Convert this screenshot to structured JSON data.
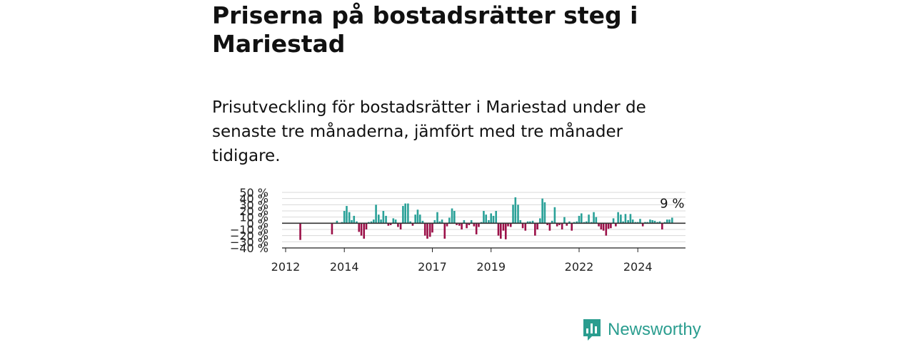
{
  "title": "Priserna på bostadsrätter steg i Mariestad",
  "subtitle": "Prisutveckling för bostadsrätter i Mariestad under de senaste tre månaderna, jämfört med tre månader tidigare.",
  "brand": {
    "name": "Newsworthy"
  },
  "colors": {
    "positive": "#2aa198",
    "negative": "#9b1048",
    "brand": "#2a9d8f",
    "grid": "#d9d9d9",
    "zero": "#333333"
  },
  "chart_data": {
    "type": "bar",
    "ylim": [
      -40,
      50
    ],
    "yticks": [
      -40,
      -30,
      -20,
      -10,
      0,
      10,
      20,
      30,
      40,
      50
    ],
    "ytick_labels": [
      "−40 %",
      "−30 %",
      "−20 %",
      "−10 %",
      "0 %",
      "10 %",
      "20 %",
      "30 %",
      "40 %",
      "50 %"
    ],
    "xticks": [
      2012,
      2014,
      2017,
      2019,
      2022,
      2024
    ],
    "xlim": [
      2011.9,
      2025.6
    ],
    "grid": true,
    "last_label": "9 %",
    "x": [
      2012.5,
      2013.58,
      2013.75,
      2013.92,
      2014.0,
      2014.08,
      2014.17,
      2014.25,
      2014.33,
      2014.42,
      2014.5,
      2014.58,
      2014.67,
      2014.75,
      2014.83,
      2014.92,
      2015.0,
      2015.08,
      2015.17,
      2015.25,
      2015.33,
      2015.42,
      2015.5,
      2015.58,
      2015.67,
      2015.75,
      2015.83,
      2015.92,
      2016.0,
      2016.08,
      2016.17,
      2016.25,
      2016.33,
      2016.42,
      2016.5,
      2016.58,
      2016.67,
      2016.75,
      2016.83,
      2016.92,
      2017.0,
      2017.08,
      2017.17,
      2017.25,
      2017.33,
      2017.42,
      2017.5,
      2017.58,
      2017.67,
      2017.75,
      2017.83,
      2017.92,
      2018.0,
      2018.08,
      2018.17,
      2018.25,
      2018.33,
      2018.42,
      2018.5,
      2018.58,
      2018.67,
      2018.75,
      2018.83,
      2018.92,
      2019.0,
      2019.08,
      2019.17,
      2019.25,
      2019.33,
      2019.42,
      2019.5,
      2019.58,
      2019.67,
      2019.75,
      2019.83,
      2019.92,
      2020.0,
      2020.08,
      2020.17,
      2020.25,
      2020.33,
      2020.42,
      2020.5,
      2020.58,
      2020.67,
      2020.75,
      2020.83,
      2020.92,
      2021.0,
      2021.08,
      2021.17,
      2021.25,
      2021.33,
      2021.42,
      2021.5,
      2021.58,
      2021.67,
      2021.75,
      2021.83,
      2021.92,
      2022.0,
      2022.08,
      2022.17,
      2022.25,
      2022.33,
      2022.42,
      2022.5,
      2022.58,
      2022.67,
      2022.75,
      2022.83,
      2022.92,
      2023.0,
      2023.08,
      2023.17,
      2023.25,
      2023.33,
      2023.42,
      2023.5,
      2023.58,
      2023.67,
      2023.75,
      2023.83,
      2023.92,
      2024.0,
      2024.08,
      2024.17,
      2024.25,
      2024.33,
      2024.42,
      2024.5,
      2024.58,
      2024.67,
      2024.75,
      2024.83,
      2024.92,
      2025.0,
      2025.08,
      2025.17
    ],
    "values": [
      -27,
      -18,
      4,
      2,
      20,
      28,
      18,
      5,
      12,
      3,
      -14,
      -20,
      -25,
      -10,
      2,
      3,
      6,
      30,
      14,
      6,
      20,
      12,
      -4,
      -3,
      8,
      6,
      -6,
      -10,
      28,
      32,
      32,
      3,
      -4,
      14,
      22,
      14,
      4,
      -20,
      -25,
      -22,
      -15,
      5,
      18,
      3,
      6,
      -25,
      -5,
      9,
      24,
      20,
      -3,
      -4,
      -10,
      5,
      -8,
      -3,
      5,
      -5,
      -18,
      -6,
      2,
      20,
      14,
      5,
      16,
      12,
      20,
      -20,
      -25,
      -12,
      -26,
      -5,
      -6,
      30,
      42,
      30,
      5,
      -8,
      -12,
      3,
      3,
      4,
      -20,
      -10,
      8,
      40,
      34,
      -3,
      -12,
      4,
      26,
      -5,
      -3,
      -10,
      10,
      -4,
      3,
      -12,
      2,
      3,
      12,
      16,
      2,
      3,
      14,
      2,
      18,
      10,
      -5,
      -10,
      -12,
      -20,
      -9,
      -8,
      8,
      -5,
      18,
      14,
      3,
      15,
      5,
      15,
      6,
      2,
      2,
      7,
      -5,
      2,
      2,
      6,
      5,
      4,
      2,
      3,
      -10,
      2,
      6,
      6,
      9
    ]
  }
}
